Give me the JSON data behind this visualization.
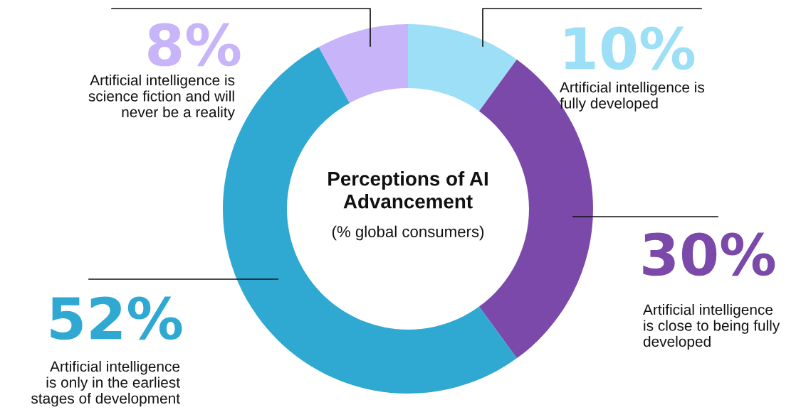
{
  "chart_data": {
    "type": "donut",
    "title": "Perceptions of AI\nAdvancement",
    "subtitle": "(% global consumers)",
    "categories": [
      "Artificial intelligence is\nfully developed",
      "Artificial intelligence\nis close to being fully\ndeveloped",
      "Artificial intelligence\nis only in the earliest\nstages of development",
      "Artificial intelligence is\nscience fiction and will\nnever be a reality"
    ],
    "values": [
      10,
      30,
      52,
      8
    ],
    "value_labels": [
      "10%",
      "30%",
      "52%",
      "8%"
    ],
    "colors": [
      "#9ddff6",
      "#7a49a9",
      "#2fa8d2",
      "#c8b4f8"
    ]
  }
}
